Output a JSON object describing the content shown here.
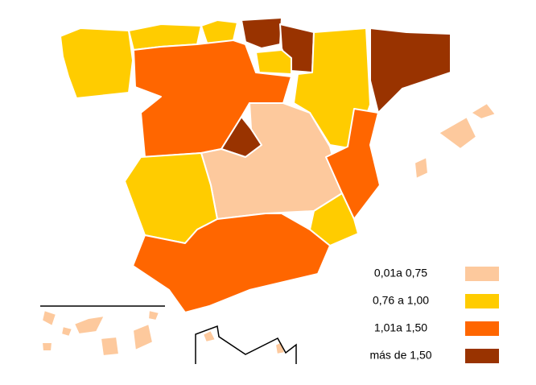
{
  "legend": [
    {
      "label": "0,01a 0,75",
      "color": "#fdc99d"
    },
    {
      "label": "0,76 a 1,00",
      "color": "#ffcc00"
    },
    {
      "label": "1,01a 1,50",
      "color": "#ff6600"
    },
    {
      "label": "más de 1,50",
      "color": "#993300"
    }
  ]
}
